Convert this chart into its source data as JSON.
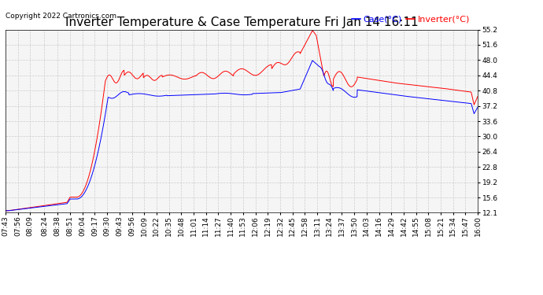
{
  "title": "Inverter Temperature & Case Temperature Fri Jan 14 16:11",
  "copyright": "Copyright 2022 Cartronics.com",
  "legend_case": "Case(°C)",
  "legend_inverter": "Inverter(°C)",
  "ylim": [
    12.1,
    55.2
  ],
  "yticks": [
    12.1,
    15.6,
    19.2,
    22.8,
    26.4,
    30.0,
    33.6,
    37.2,
    40.8,
    44.4,
    48.0,
    51.6,
    55.2
  ],
  "background_color": "#ffffff",
  "plot_bg_color": "#f5f5f5",
  "grid_color": "#cccccc",
  "case_color": "blue",
  "inverter_color": "red",
  "title_fontsize": 11,
  "tick_fontsize": 6.5,
  "legend_fontsize": 8,
  "copyright_fontsize": 6.5,
  "xtick_labels": [
    "07:43",
    "07:56",
    "08:09",
    "08:24",
    "08:38",
    "08:51",
    "09:04",
    "09:17",
    "09:30",
    "09:43",
    "09:56",
    "10:09",
    "10:22",
    "10:35",
    "10:48",
    "11:01",
    "11:14",
    "11:27",
    "11:40",
    "11:53",
    "12:06",
    "12:19",
    "12:32",
    "12:45",
    "12:58",
    "13:11",
    "13:24",
    "13:37",
    "13:50",
    "14:03",
    "14:16",
    "14:29",
    "14:42",
    "14:55",
    "15:08",
    "15:21",
    "15:34",
    "15:47",
    "16:00"
  ]
}
